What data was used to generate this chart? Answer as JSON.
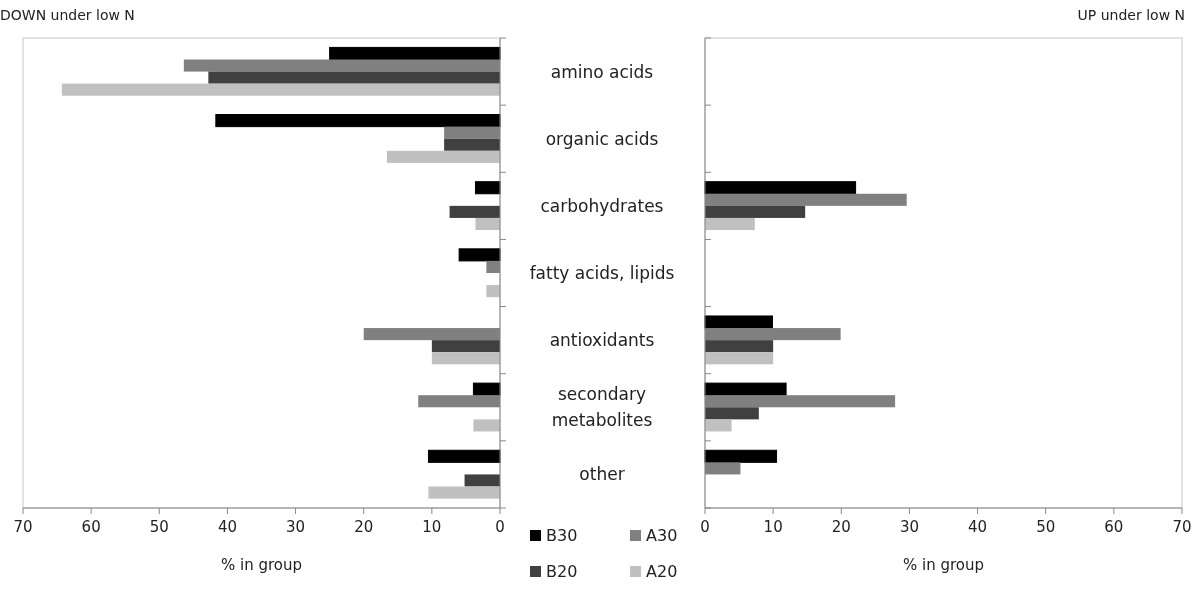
{
  "chart_data": [
    {
      "type": "bar",
      "orientation": "horizontal",
      "title": "DOWN under low N",
      "xlabel": "% in group",
      "categories": [
        "amino acids",
        "organic acids",
        "carbohydrates",
        "fatty acids, lipids",
        "antioxidants",
        "secondary metabolites",
        "other"
      ],
      "series": [
        {
          "name": "B30",
          "color": "#000000",
          "values": [
            25.0,
            41.7,
            3.6,
            6.0,
            null,
            3.9,
            10.5
          ]
        },
        {
          "name": "A30",
          "color": "#808080",
          "values": [
            46.4,
            8.2,
            null,
            2.0,
            20.0,
            12.0,
            null
          ]
        },
        {
          "name": "B20",
          "color": "#404040",
          "values": [
            42.8,
            8.2,
            7.4,
            null,
            10.0,
            null,
            5.2
          ]
        },
        {
          "name": "A20",
          "color": "#c0c0c0",
          "values": [
            64.3,
            16.6,
            3.6,
            2.0,
            10.0,
            3.9,
            10.5
          ]
        }
      ],
      "xlim": [
        70,
        0
      ],
      "xticks": [
        70,
        60,
        50,
        40,
        30,
        20,
        10,
        0
      ],
      "legend": "bottom"
    },
    {
      "type": "bar",
      "orientation": "horizontal",
      "title": "UP under low N",
      "xlabel": "% in group",
      "categories": [
        null,
        null,
        null,
        null,
        null,
        null,
        null
      ],
      "series": [
        {
          "color": "#000000",
          "values": [
            null,
            null,
            22.1,
            null,
            9.9,
            11.9,
            10.5
          ]
        },
        {
          "color": "#808080",
          "values": [
            null,
            null,
            29.6,
            null,
            19.9,
            27.9,
            5.2
          ]
        },
        {
          "color": "#404040",
          "values": [
            null,
            null,
            14.7,
            null,
            10.0,
            7.9,
            null
          ]
        },
        {
          "color": "#c0c0c0",
          "values": [
            null,
            null,
            7.3,
            null,
            10.0,
            3.9,
            null
          ]
        }
      ],
      "xlim": [
        0,
        70
      ],
      "xticks": [
        0,
        10,
        20,
        30,
        40,
        50,
        60,
        70
      ],
      "tick_labels": "x"
    }
  ]
}
